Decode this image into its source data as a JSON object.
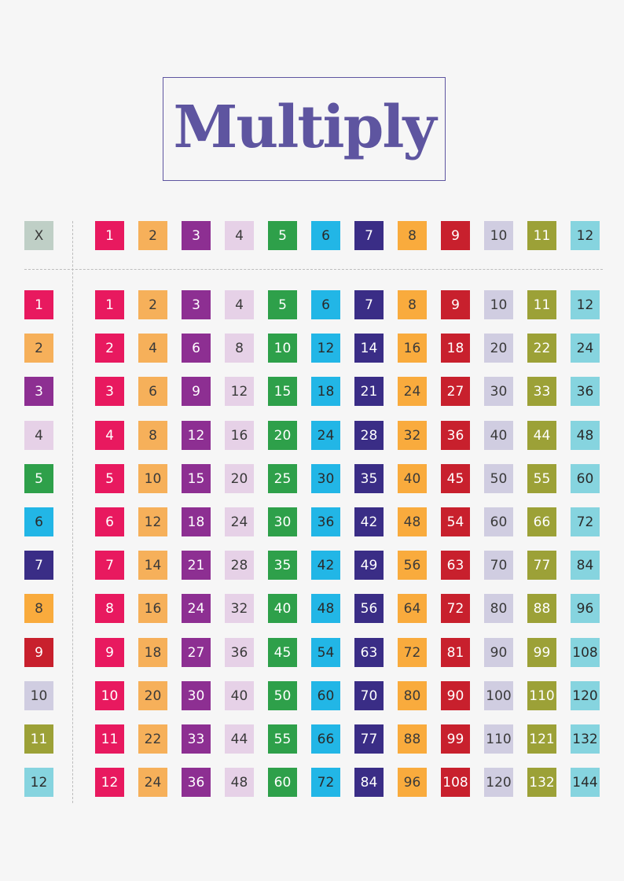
{
  "title": "Multiply",
  "corner_label": "X",
  "header_values": [
    1,
    2,
    3,
    4,
    5,
    6,
    7,
    8,
    9,
    10,
    11,
    12
  ],
  "row_values": [
    1,
    2,
    3,
    4,
    5,
    6,
    7,
    8,
    9,
    10,
    11,
    12
  ],
  "table": [
    [
      1,
      2,
      3,
      4,
      5,
      6,
      7,
      8,
      9,
      10,
      11,
      12
    ],
    [
      2,
      4,
      6,
      8,
      10,
      12,
      14,
      16,
      18,
      20,
      22,
      24
    ],
    [
      3,
      6,
      9,
      12,
      15,
      18,
      21,
      24,
      27,
      30,
      33,
      36
    ],
    [
      4,
      8,
      12,
      16,
      20,
      24,
      28,
      32,
      36,
      40,
      44,
      48
    ],
    [
      5,
      10,
      15,
      20,
      25,
      30,
      35,
      40,
      45,
      50,
      55,
      60
    ],
    [
      6,
      12,
      18,
      24,
      30,
      36,
      42,
      48,
      54,
      60,
      66,
      72
    ],
    [
      7,
      14,
      21,
      28,
      35,
      42,
      49,
      56,
      63,
      70,
      77,
      84
    ],
    [
      8,
      16,
      24,
      32,
      40,
      48,
      56,
      64,
      72,
      80,
      88,
      96
    ],
    [
      9,
      18,
      27,
      36,
      45,
      54,
      63,
      72,
      81,
      90,
      99,
      108
    ],
    [
      10,
      20,
      30,
      40,
      50,
      60,
      70,
      80,
      90,
      100,
      110,
      120
    ],
    [
      11,
      22,
      33,
      44,
      55,
      66,
      77,
      88,
      99,
      110,
      121,
      132
    ],
    [
      12,
      24,
      36,
      48,
      60,
      72,
      84,
      96,
      108,
      120,
      132,
      144
    ]
  ],
  "palette": {
    "1": {
      "bg": "#e8195f",
      "fg": "#ffffff"
    },
    "2": {
      "bg": "#f6b05a",
      "fg": "#3a3a3a"
    },
    "3": {
      "bg": "#8d2f92",
      "fg": "#ffffff"
    },
    "4": {
      "bg": "#e6d1e7",
      "fg": "#3a3a3a"
    },
    "5": {
      "bg": "#2ea04a",
      "fg": "#ffffff"
    },
    "6": {
      "bg": "#22b6e6",
      "fg": "#2a2a2a"
    },
    "7": {
      "bg": "#3a2d86",
      "fg": "#ffffff"
    },
    "8": {
      "bg": "#f9ab3d",
      "fg": "#3a3a3a"
    },
    "9": {
      "bg": "#c8202d",
      "fg": "#ffffff"
    },
    "10": {
      "bg": "#d0cde1",
      "fg": "#3a3a3a"
    },
    "11": {
      "bg": "#9ca137",
      "fg": "#ffffff"
    },
    "12": {
      "bg": "#86d4df",
      "fg": "#2a2a2a"
    },
    "corner": {
      "bg": "#bfcfc6",
      "fg": "#3a3a3a"
    },
    "title": "#5e55a0"
  }
}
